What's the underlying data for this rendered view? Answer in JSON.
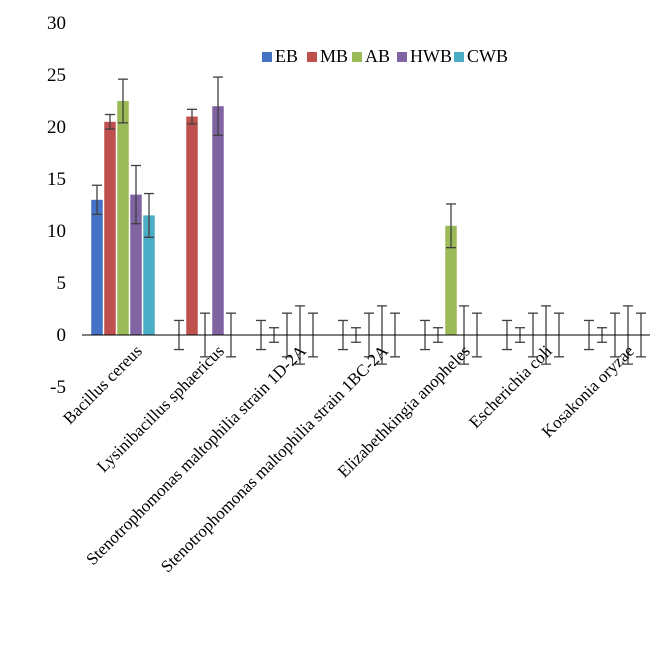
{
  "chart_data": {
    "type": "bar",
    "title": "",
    "xlabel": "",
    "ylabel": "",
    "ylim": [
      -5,
      30
    ],
    "yticks": [
      30,
      25,
      20,
      15,
      10,
      5,
      0,
      -5
    ],
    "legend_position": "top-right",
    "categories": [
      "Bacillus cereus",
      "Lysinibacillus sphaericus",
      "Stenotrophomonas maltophilia strain 1D-2A",
      "Stenotrophomonas maltophilia strain 1BC-2A",
      "Elizabethkingia anopheles",
      "Escherichia coli",
      "Kosakonia oryzae"
    ],
    "series": [
      {
        "name": "EB",
        "color": "#4472C4",
        "values": [
          13,
          0,
          0,
          0,
          0,
          0,
          0
        ],
        "errors": [
          1.4,
          1.4,
          1.4,
          1.4,
          1.4,
          1.4,
          1.4
        ]
      },
      {
        "name": "MB",
        "color": "#C0504D",
        "values": [
          20.5,
          21,
          0,
          0,
          0,
          0,
          0
        ],
        "errors": [
          0.7,
          0.7,
          0.7,
          0.7,
          0.7,
          0.7,
          0.7
        ]
      },
      {
        "name": "AB",
        "color": "#9BBB59",
        "values": [
          22.5,
          0,
          0,
          0,
          10.5,
          0,
          0
        ],
        "errors": [
          2.1,
          2.1,
          2.1,
          2.1,
          2.1,
          2.1,
          2.1
        ]
      },
      {
        "name": "HWB",
        "color": "#8064A2",
        "values": [
          13.5,
          22,
          0,
          0,
          0,
          0,
          0
        ],
        "errors": [
          2.8,
          2.8,
          2.8,
          2.8,
          2.8,
          2.8,
          2.8
        ]
      },
      {
        "name": "CWB",
        "color": "#4BACC6",
        "values": [
          11.5,
          0,
          0,
          0,
          0,
          0,
          0
        ],
        "errors": [
          2.1,
          2.1,
          2.1,
          2.1,
          2.1,
          2.1,
          2.1
        ]
      }
    ]
  }
}
